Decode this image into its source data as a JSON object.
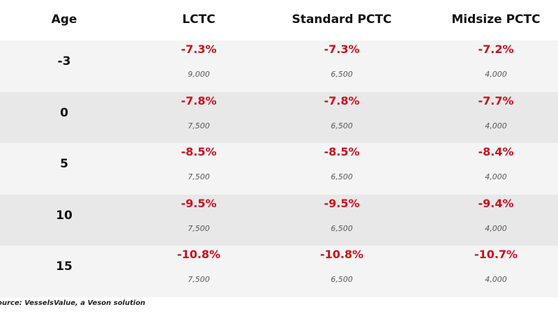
{
  "chart_data": {
    "type": "table",
    "columns": [
      "Age",
      "LCTC",
      "Standard PCTC",
      "Midsize PCTC"
    ],
    "rows": [
      {
        "age": "-3",
        "cells": [
          {
            "pct": "-7.3%",
            "value": "9,000"
          },
          {
            "pct": "-7.3%",
            "value": "6,500"
          },
          {
            "pct": "-7.2%",
            "value": "4,000"
          }
        ]
      },
      {
        "age": "0",
        "cells": [
          {
            "pct": "-7.8%",
            "value": "7,500"
          },
          {
            "pct": "-7.8%",
            "value": "6,500"
          },
          {
            "pct": "-7.7%",
            "value": "4,000"
          }
        ]
      },
      {
        "age": "5",
        "cells": [
          {
            "pct": "-8.5%",
            "value": "7,500"
          },
          {
            "pct": "-8.5%",
            "value": "6,500"
          },
          {
            "pct": "-8.4%",
            "value": "4,000"
          }
        ]
      },
      {
        "age": "10",
        "cells": [
          {
            "pct": "-9.5%",
            "value": "7,500"
          },
          {
            "pct": "-9.5%",
            "value": "6,500"
          },
          {
            "pct": "-9.4%",
            "value": "4,000"
          }
        ]
      },
      {
        "age": "15",
        "cells": [
          {
            "pct": "-10.8%",
            "value": "7,500"
          },
          {
            "pct": "-10.8%",
            "value": "6,500"
          },
          {
            "pct": "-10.7%",
            "value": "4,000"
          }
        ]
      }
    ],
    "source": "ource: VesselsValue, a Veson solution"
  },
  "colors": {
    "negative_change": "#c8101e",
    "row_light": "#f4f4f4",
    "row_dark": "#e8e8e8",
    "text": "#111111"
  }
}
